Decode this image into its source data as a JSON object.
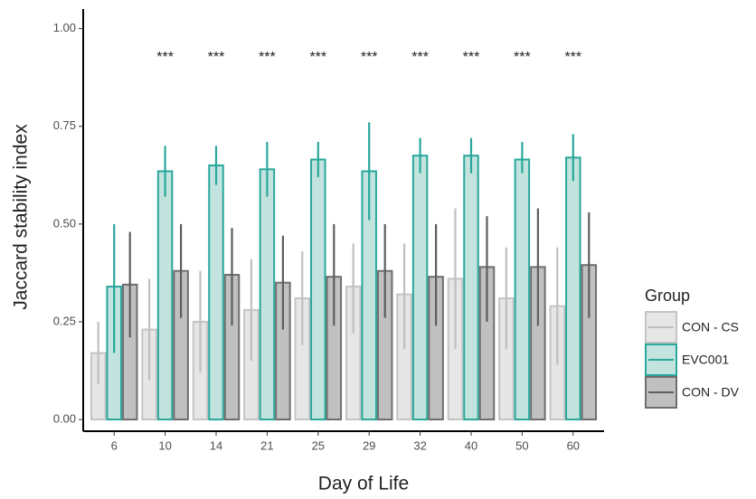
{
  "chart_data": {
    "type": "bar",
    "x_label": "Day of Life",
    "y_label": "Jaccard stability index",
    "categories": [
      "6",
      "10",
      "14",
      "21",
      "25",
      "29",
      "32",
      "40",
      "50",
      "60"
    ],
    "series": [
      {
        "name": "CON - CS",
        "color": "#e6e6e6",
        "edge_color": "#c4c4c4",
        "error_color": "#c0c0c0",
        "values": [
          0.17,
          0.23,
          0.25,
          0.28,
          0.31,
          0.34,
          0.32,
          0.36,
          0.31,
          0.29
        ],
        "error_low": [
          0.09,
          0.1,
          0.12,
          0.15,
          0.19,
          0.22,
          0.18,
          0.18,
          0.18,
          0.14
        ],
        "error_high": [
          0.25,
          0.36,
          0.38,
          0.41,
          0.43,
          0.45,
          0.45,
          0.54,
          0.44,
          0.44
        ]
      },
      {
        "name": "EVC001",
        "color": "#c3e3de",
        "edge_color": "#2aa79b",
        "error_color": "#2aa79b",
        "values": [
          0.34,
          0.635,
          0.65,
          0.64,
          0.665,
          0.635,
          0.675,
          0.675,
          0.665,
          0.67
        ],
        "error_low": [
          0.17,
          0.57,
          0.6,
          0.57,
          0.62,
          0.51,
          0.63,
          0.63,
          0.63,
          0.61
        ],
        "error_high": [
          0.5,
          0.7,
          0.7,
          0.71,
          0.71,
          0.76,
          0.72,
          0.72,
          0.71,
          0.73
        ]
      },
      {
        "name": "CON - DV",
        "color": "#c0c0c0",
        "edge_color": "#6e6e6e",
        "error_color": "#5e5e5e",
        "values": [
          0.345,
          0.38,
          0.37,
          0.35,
          0.365,
          0.38,
          0.365,
          0.39,
          0.39,
          0.395
        ],
        "error_low": [
          0.21,
          0.26,
          0.24,
          0.23,
          0.24,
          0.26,
          0.24,
          0.25,
          0.24,
          0.26
        ],
        "error_high": [
          0.48,
          0.5,
          0.49,
          0.47,
          0.5,
          0.5,
          0.5,
          0.52,
          0.54,
          0.53
        ]
      }
    ],
    "significance": [
      null,
      "***",
      "***",
      "***",
      "***",
      "***",
      "***",
      "***",
      "***",
      "***"
    ],
    "ylim": [
      -0.03,
      1.05
    ],
    "yticks": [
      {
        "value": 0,
        "label": "0.00"
      },
      {
        "value": 0.25,
        "label": "0.25"
      },
      {
        "value": 0.5,
        "label": "0.50"
      },
      {
        "value": 0.75,
        "label": "0.75"
      },
      {
        "value": 1,
        "label": "1.00"
      }
    ],
    "legend_title": "Group",
    "legend_position": "right",
    "grid": false
  }
}
